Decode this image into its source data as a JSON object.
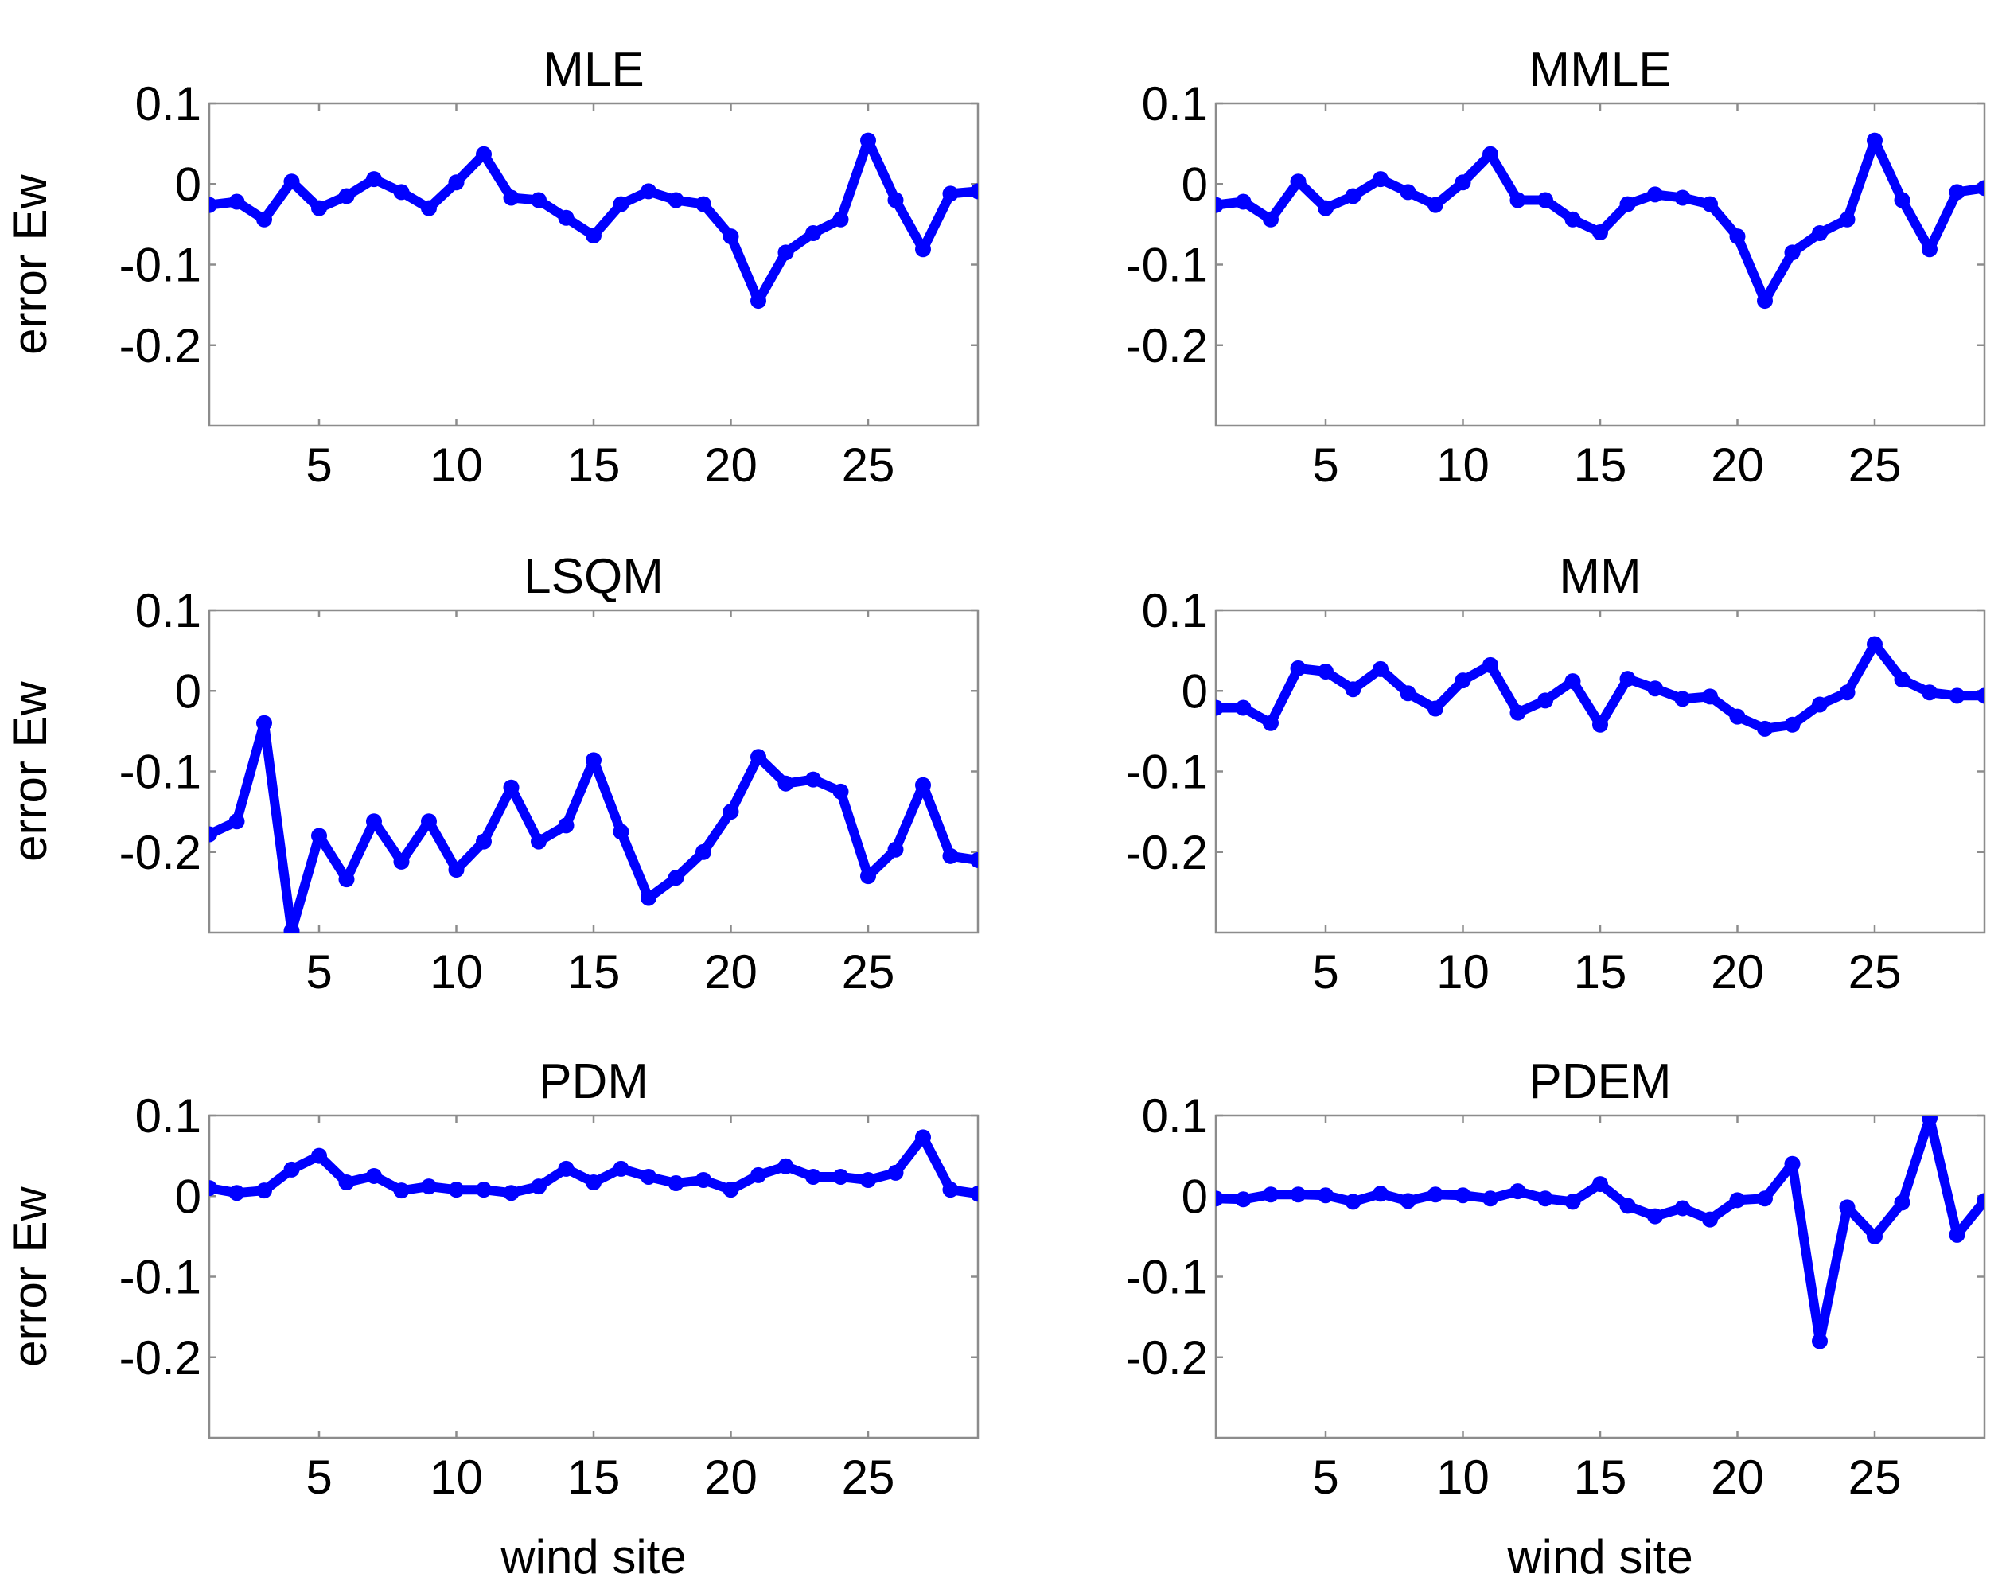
{
  "chart_data": [
    {
      "type": "line",
      "title": "MLE",
      "xlabel": "",
      "ylabel": "error Ew",
      "xlim": [
        1,
        29
      ],
      "ylim": [
        -0.3,
        0.1
      ],
      "xticks": [
        "5",
        "10",
        "15",
        "20",
        "25"
      ],
      "yticks": [
        "0.1",
        "0",
        "-0.1",
        "-0.2"
      ],
      "color": "#0000FF",
      "x": [
        1,
        2,
        3,
        4,
        5,
        6,
        7,
        8,
        9,
        10,
        11,
        12,
        13,
        14,
        15,
        16,
        17,
        18,
        19,
        20,
        21,
        22,
        23,
        24,
        25,
        26,
        27,
        28,
        29
      ],
      "values": [
        -0.026,
        -0.022,
        -0.044,
        0.003,
        -0.03,
        -0.015,
        0.006,
        -0.01,
        -0.03,
        0.002,
        0.037,
        -0.017,
        -0.02,
        -0.042,
        -0.064,
        -0.025,
        -0.009,
        -0.02,
        -0.025,
        -0.065,
        -0.145,
        -0.085,
        -0.061,
        -0.044,
        0.054,
        -0.02,
        -0.081,
        -0.012,
        -0.009
      ]
    },
    {
      "type": "line",
      "title": "MMLE",
      "xlabel": "",
      "ylabel": "",
      "xlim": [
        1,
        29
      ],
      "ylim": [
        -0.3,
        0.1
      ],
      "xticks": [
        "5",
        "10",
        "15",
        "20",
        "25"
      ],
      "yticks": [
        "0.1",
        "0",
        "-0.1",
        "-0.2"
      ],
      "color": "#0000FF",
      "x": [
        1,
        2,
        3,
        4,
        5,
        6,
        7,
        8,
        9,
        10,
        11,
        12,
        13,
        14,
        15,
        16,
        17,
        18,
        19,
        20,
        21,
        22,
        23,
        24,
        25,
        26,
        27,
        28,
        29
      ],
      "values": [
        -0.026,
        -0.022,
        -0.044,
        0.003,
        -0.03,
        -0.015,
        0.006,
        -0.01,
        -0.026,
        0.002,
        0.037,
        -0.02,
        -0.02,
        -0.044,
        -0.06,
        -0.025,
        -0.013,
        -0.017,
        -0.025,
        -0.065,
        -0.145,
        -0.085,
        -0.061,
        -0.044,
        0.054,
        -0.02,
        -0.081,
        -0.01,
        -0.005
      ]
    },
    {
      "type": "line",
      "title": "LSQM",
      "xlabel": "",
      "ylabel": "error Ew",
      "xlim": [
        1,
        29
      ],
      "ylim": [
        -0.3,
        0.1
      ],
      "xticks": [
        "5",
        "10",
        "15",
        "20",
        "25"
      ],
      "yticks": [
        "0.1",
        "0",
        "-0.1",
        "-0.2"
      ],
      "color": "#0000FF",
      "x": [
        1,
        2,
        3,
        4,
        5,
        6,
        7,
        8,
        9,
        10,
        11,
        12,
        13,
        14,
        15,
        16,
        17,
        18,
        19,
        20,
        21,
        22,
        23,
        24,
        25,
        26,
        27,
        28,
        29
      ],
      "values": [
        -0.178,
        -0.162,
        -0.04,
        -0.298,
        -0.18,
        -0.234,
        -0.162,
        -0.212,
        -0.162,
        -0.222,
        -0.187,
        -0.12,
        -0.187,
        -0.167,
        -0.086,
        -0.175,
        -0.257,
        -0.232,
        -0.2,
        -0.15,
        -0.082,
        -0.115,
        -0.11,
        -0.125,
        -0.23,
        -0.197,
        -0.117,
        -0.205,
        -0.21
      ]
    },
    {
      "type": "line",
      "title": "MM",
      "xlabel": "",
      "ylabel": "",
      "xlim": [
        1,
        29
      ],
      "ylim": [
        -0.3,
        0.1
      ],
      "xticks": [
        "5",
        "10",
        "15",
        "20",
        "25"
      ],
      "yticks": [
        "0.1",
        "0",
        "-0.1",
        "-0.2"
      ],
      "color": "#0000FF",
      "x": [
        1,
        2,
        3,
        4,
        5,
        6,
        7,
        8,
        9,
        10,
        11,
        12,
        13,
        14,
        15,
        16,
        17,
        18,
        19,
        20,
        21,
        22,
        23,
        24,
        25,
        26,
        27,
        28,
        29
      ],
      "values": [
        -0.021,
        -0.021,
        -0.04,
        0.028,
        0.024,
        0.002,
        0.027,
        -0.003,
        -0.022,
        0.013,
        0.032,
        -0.027,
        -0.012,
        0.012,
        -0.042,
        0.015,
        0.003,
        -0.01,
        -0.007,
        -0.032,
        -0.047,
        -0.042,
        -0.017,
        -0.002,
        0.058,
        0.014,
        -0.002,
        -0.006,
        -0.006
      ]
    },
    {
      "type": "line",
      "title": "PDM",
      "xlabel": "wind site",
      "ylabel": "error Ew",
      "xlim": [
        1,
        29
      ],
      "ylim": [
        -0.3,
        0.1
      ],
      "xticks": [
        "5",
        "10",
        "15",
        "20",
        "25"
      ],
      "yticks": [
        "0.1",
        "0",
        "-0.1",
        "-0.2"
      ],
      "color": "#0000FF",
      "x": [
        1,
        2,
        3,
        4,
        5,
        6,
        7,
        8,
        9,
        10,
        11,
        12,
        13,
        14,
        15,
        16,
        17,
        18,
        19,
        20,
        21,
        22,
        23,
        24,
        25,
        26,
        27,
        28,
        29
      ],
      "values": [
        0.01,
        0.004,
        0.007,
        0.033,
        0.05,
        0.017,
        0.025,
        0.007,
        0.012,
        0.008,
        0.008,
        0.004,
        0.012,
        0.034,
        0.017,
        0.034,
        0.024,
        0.016,
        0.02,
        0.008,
        0.026,
        0.037,
        0.024,
        0.024,
        0.02,
        0.029,
        0.073,
        0.008,
        0.003
      ]
    },
    {
      "type": "line",
      "title": "PDEM",
      "xlabel": "wind site",
      "ylabel": "",
      "xlim": [
        1,
        29
      ],
      "ylim": [
        -0.3,
        0.1
      ],
      "xticks": [
        "5",
        "10",
        "15",
        "20",
        "25"
      ],
      "yticks": [
        "0.1",
        "0",
        "-0.1",
        "-0.2"
      ],
      "color": "#0000FF",
      "x": [
        1,
        2,
        3,
        4,
        5,
        6,
        7,
        8,
        9,
        10,
        11,
        12,
        13,
        14,
        15,
        16,
        17,
        18,
        19,
        20,
        21,
        22,
        23,
        24,
        25,
        26,
        27,
        28,
        29
      ],
      "values": [
        -0.003,
        -0.004,
        0.002,
        0.002,
        0.001,
        -0.007,
        0.003,
        -0.006,
        0.002,
        0.001,
        -0.003,
        0.006,
        -0.003,
        -0.007,
        0.015,
        -0.012,
        -0.025,
        -0.015,
        -0.029,
        -0.005,
        -0.003,
        0.04,
        -0.18,
        -0.014,
        -0.05,
        -0.008,
        0.097,
        -0.048,
        -0.006
      ]
    }
  ]
}
